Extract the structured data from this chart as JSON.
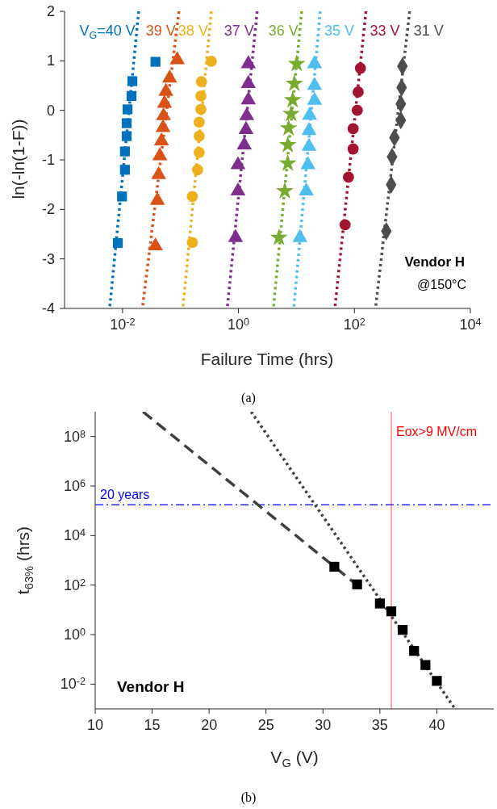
{
  "chart_data": [
    {
      "type": "scatter",
      "xlabel": "Failure Time (hrs)",
      "ylabel": "ln(-ln(1-F))",
      "log": "x",
      "xlim": [
        0.001,
        10000
      ],
      "xticks": [
        {
          "value": 0.01,
          "label": "10$^{-2}$"
        },
        {
          "value": 1,
          "label": "10$^{0}$"
        },
        {
          "value": 100,
          "label": "10$^{2}$"
        },
        {
          "value": 10000,
          "label": "10$^{4}$"
        }
      ],
      "ylim": [
        -4,
        2
      ],
      "yticks": [
        -4,
        -3,
        -2,
        -1,
        0,
        1,
        2
      ],
      "annotations": [
        "Vendor H",
        "@150°C",
        "(a)"
      ],
      "series": [
        {
          "name": "V$_{G}$=40 V",
          "color": "#0072bd",
          "marker": "square",
          "x": [
            0.037,
            0.0148,
            0.0143,
            0.0122,
            0.0118,
            0.0118,
            0.011,
            0.011,
            0.0098,
            0.0083
          ],
          "values": [
            0.98,
            0.59,
            0.29,
            0.02,
            -0.26,
            -0.52,
            -0.83,
            -1.2,
            -1.74,
            -2.68
          ]
        },
        {
          "type": "line",
          "color": "#0072bd",
          "line_style": "dotted",
          "x": [
            0.019,
            0.006
          ],
          "values": [
            2,
            -4
          ]
        },
        {
          "name": "39 V",
          "color": "#d95319",
          "marker": "triangle",
          "x": [
            0.088,
            0.065,
            0.056,
            0.053,
            0.051,
            0.05,
            0.047,
            0.044,
            0.042,
            0.04,
            0.037
          ],
          "values": [
            1.02,
            0.65,
            0.38,
            0.14,
            -0.11,
            -0.35,
            -0.62,
            -0.92,
            -1.3,
            -1.82,
            -2.74
          ]
        },
        {
          "type": "line",
          "color": "#d95319",
          "line_style": "dotted",
          "x": [
            0.094,
            0.022
          ],
          "values": [
            2,
            -4
          ]
        },
        {
          "name": "38 V",
          "color": "#edb120",
          "marker": "circle",
          "x": [
            0.34,
            0.23,
            0.225,
            0.225,
            0.21,
            0.21,
            0.21,
            0.197,
            0.16,
            0.16
          ],
          "values": [
            0.99,
            0.58,
            0.29,
            0.02,
            -0.24,
            -0.52,
            -0.85,
            -1.2,
            -1.74,
            -2.67
          ]
        },
        {
          "type": "line",
          "color": "#edb120",
          "line_style": "dotted",
          "x": [
            0.34,
            0.11
          ],
          "values": [
            2,
            -4
          ]
        },
        {
          "name": "37 V",
          "color": "#7e2f8e",
          "marker": "triangle",
          "x": [
            1.48,
            1.48,
            1.48,
            1.39,
            1.35,
            1.26,
            0.98,
            0.98,
            0.89
          ],
          "values": [
            0.94,
            0.54,
            0.21,
            -0.11,
            -0.39,
            -0.7,
            -1.1,
            -1.63,
            -2.57
          ]
        },
        {
          "type": "line",
          "color": "#7e2f8e",
          "line_style": "dotted",
          "x": [
            2.1,
            0.64
          ],
          "values": [
            2,
            -4
          ]
        },
        {
          "name": "36 V",
          "color": "#77ac30",
          "marker": "star",
          "x": [
            10.1,
            9.2,
            8.6,
            8.1,
            7.3,
            7.1,
            7.1,
            6.3,
            5.0
          ],
          "values": [
            0.94,
            0.54,
            0.21,
            -0.07,
            -0.36,
            -0.7,
            -1.07,
            -1.63,
            -2.57
          ]
        },
        {
          "type": "line",
          "color": "#77ac30",
          "line_style": "dotted",
          "x": [
            12.3,
            4.0
          ],
          "values": [
            2,
            -4
          ]
        },
        {
          "name": "35 V",
          "color": "#4dbeee",
          "marker": "triangle",
          "x": [
            20.5,
            20.5,
            20.5,
            16.9,
            16.5,
            16.5,
            15.8,
            14.8,
            11.5
          ],
          "values": [
            0.94,
            0.5,
            0.2,
            -0.1,
            -0.41,
            -0.73,
            -1.1,
            -1.63,
            -2.57
          ]
        },
        {
          "type": "line",
          "color": "#4dbeee",
          "line_style": "dotted",
          "x": [
            25.7,
            9.0
          ],
          "values": [
            2,
            -4
          ]
        },
        {
          "name": "33 V",
          "color": "#a2142f",
          "marker": "circle",
          "x": [
            127,
            116,
            112,
            95,
            95,
            79,
            69
          ],
          "values": [
            0.85,
            0.37,
            0.0,
            -0.37,
            -0.78,
            -1.35,
            -2.31
          ]
        },
        {
          "type": "line",
          "color": "#a2142f",
          "line_style": "dotted",
          "x": [
            158,
            46
          ],
          "values": [
            2,
            -4
          ]
        },
        {
          "name": "31 V",
          "color": "#4d4d4d",
          "marker": "diamond",
          "x": [
            673,
            652,
            631,
            631,
            490,
            446,
            430,
            355
          ],
          "values": [
            0.89,
            0.46,
            0.13,
            -0.2,
            -0.55,
            -0.94,
            -1.5,
            -2.44
          ]
        },
        {
          "type": "line",
          "color": "#4d4d4d",
          "line_style": "dotted",
          "x": [
            897,
            231
          ],
          "values": [
            2,
            -4
          ]
        }
      ]
    },
    {
      "type": "scatter",
      "xlabel": "V$_{G}$ (V)",
      "ylabel": "t$_{63%}$ (hrs)",
      "log": "y",
      "xlim": [
        10,
        45
      ],
      "xticks": [
        10,
        15,
        20,
        25,
        30,
        35,
        40
      ],
      "ylim": [
        0.001,
        1000000000
      ],
      "yticks": [
        {
          "value": 0.01,
          "label": "10$^{-2}$"
        },
        {
          "value": 1,
          "label": "10$^{0}$"
        },
        {
          "value": 100,
          "label": "10$^{2}$"
        },
        {
          "value": 10000,
          "label": "10$^{4}$"
        },
        {
          "value": 1000000,
          "label": "10$^{6}$"
        },
        {
          "value": 100000000,
          "label": "10$^{8}$"
        }
      ],
      "annotations": [
        "Vendor H",
        "(b)"
      ],
      "ref_lines": [
        {
          "axis": "y",
          "value": 175200,
          "label": "20 years",
          "color": "#0000ff",
          "line_style": "dashdot"
        },
        {
          "axis": "x",
          "value": 36,
          "label": "Eox>9 MV/cm",
          "color": "#ff0000"
        }
      ],
      "series": [
        {
          "color": "#000000",
          "marker": "square",
          "x": [
            31,
            33,
            35,
            36,
            37,
            38,
            39,
            40
          ],
          "values": [
            550,
            107,
            18,
            8.7,
            1.55,
            0.22,
            0.059,
            0.0135
          ]
        },
        {
          "type": "line",
          "color": "#404040",
          "line_style": "dashed",
          "x": [
            14.2,
            33
          ],
          "values": [
            1000000000,
            100
          ]
        },
        {
          "type": "line",
          "color": "#404040",
          "line_style": "dotted",
          "x": [
            23.7,
            41.6
          ],
          "values": [
            1000000000,
            0.001
          ]
        }
      ]
    }
  ]
}
